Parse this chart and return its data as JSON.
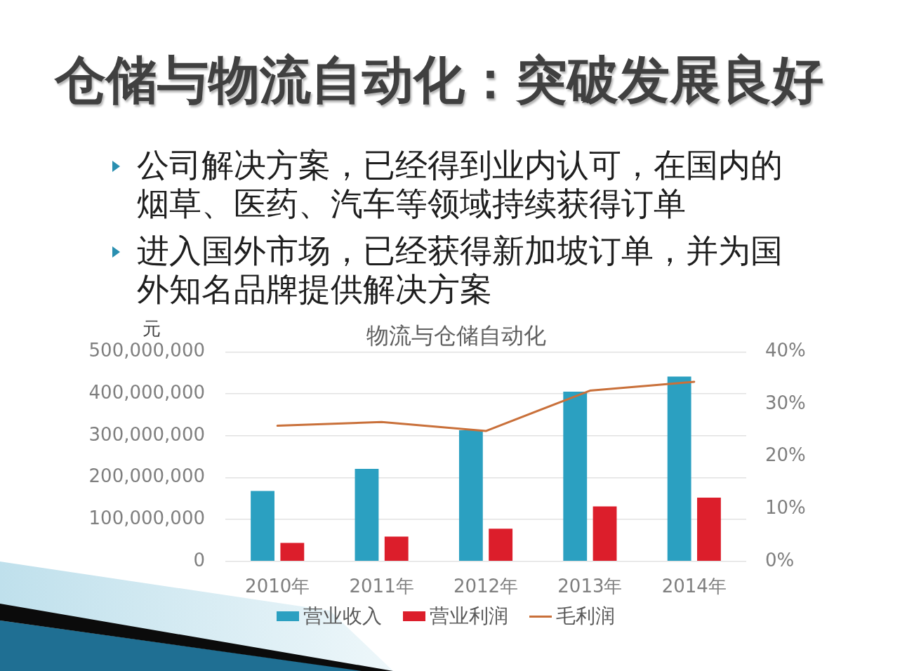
{
  "chart_data": {
    "type": "bar",
    "title": "仓储与物流自动化：突破发展良好",
    "subtitle": "物流与仓储自动化",
    "ylabel": "元",
    "annotations": [
      "公司解决方案，已经得到业内认可，在国内的烟草、医药、汽车等领域持续获得订单",
      "进入国外市场，已经获得新加坡订单，并为国外知名品牌提供解决方案"
    ],
    "categories": [
      "2010年",
      "2011年",
      "2012年",
      "2013年",
      "2014年"
    ],
    "series": [
      {
        "name": "营业收入",
        "color": "#2ba0c1",
        "values": [
          168000000,
          221000000,
          313000000,
          405000000,
          441000000
        ]
      },
      {
        "name": "营业利润",
        "color": "#dc1e2b",
        "values": [
          44000000,
          59000000,
          78000000,
          131000000,
          152000000
        ]
      },
      {
        "name": "毛利润",
        "type": "line",
        "axis": "y2",
        "color": "#c9703a",
        "values": [
          25.9,
          26.6,
          24.9,
          32.6,
          34.3
        ]
      }
    ],
    "ylim": [
      0,
      500000000
    ],
    "yticks": [
      0,
      {
        "value": 100000000,
        "label": "100,000,000"
      },
      {
        "value": 200000000,
        "label": "200,000,000"
      },
      {
        "value": 300000000,
        "label": "300,000,000"
      },
      {
        "value": 400000000,
        "label": "400,000,000"
      },
      {
        "value": 500000000,
        "label": "500,000,000"
      }
    ],
    "y2lim": [
      0,
      40
    ],
    "y2ticks": [
      {
        "value": 0,
        "label": "0%"
      },
      {
        "value": 10,
        "label": "10%"
      },
      {
        "value": 20,
        "label": "20%"
      },
      {
        "value": 30,
        "label": "30%"
      },
      {
        "value": 40,
        "label": "40%"
      }
    ],
    "grid": "y",
    "legend": "bottom",
    "marker": "none"
  }
}
